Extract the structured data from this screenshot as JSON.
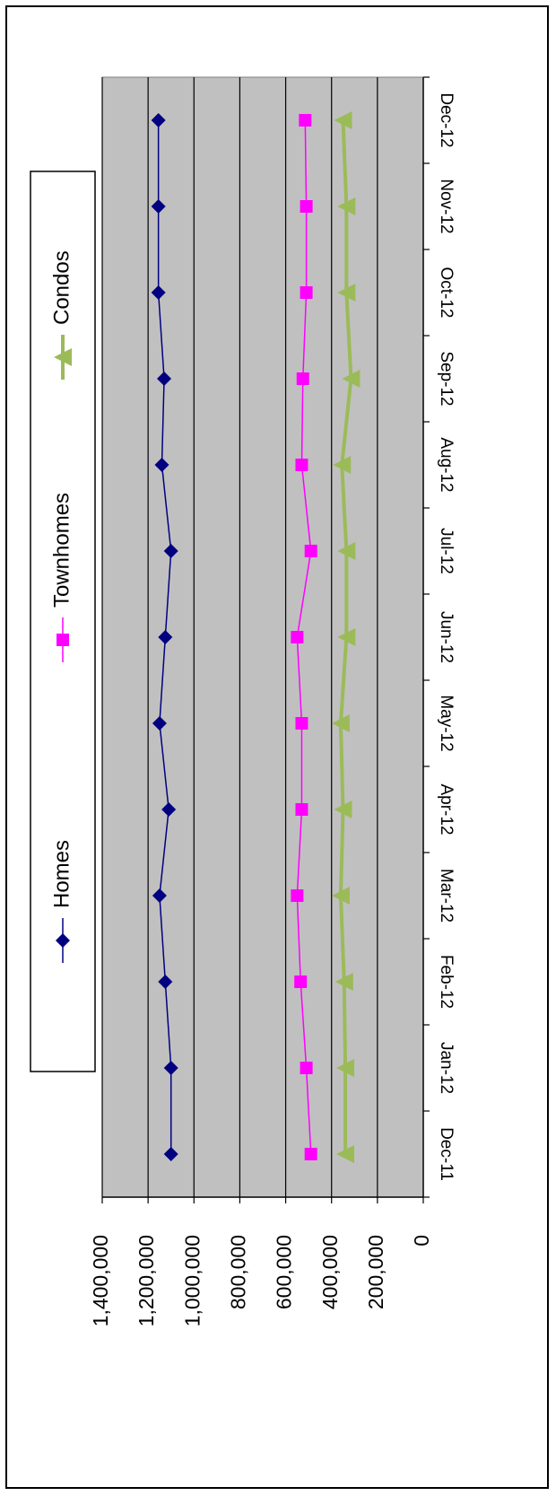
{
  "chart_data": {
    "type": "line",
    "orientation": "rotated-90-clockwise",
    "categories": [
      "Dec-11",
      "Jan-12",
      "Feb-12",
      "Mar-12",
      "Apr-12",
      "May-12",
      "Jun-12",
      "Jul-12",
      "Aug-12",
      "Sep-12",
      "Oct-12",
      "Nov-12",
      "Dec-12"
    ],
    "ylim": [
      0,
      1400000
    ],
    "yticks": [
      0,
      200000,
      400000,
      600000,
      800000,
      1000000,
      1200000,
      1400000
    ],
    "ytick_labels": [
      "0",
      "200,000",
      "400,000",
      "600,000",
      "800,000",
      "1,000,000",
      "1,200,000",
      "1,400,000"
    ],
    "grid": true,
    "plot_background": "#c0c0c0",
    "legend_position": "top",
    "series": [
      {
        "name": "Homes",
        "color": "#000080",
        "marker": "diamond",
        "values": [
          1100000,
          1100000,
          1125000,
          1150000,
          1110000,
          1150000,
          1125000,
          1100000,
          1140000,
          1130000,
          1155000,
          1155000,
          1155000
        ]
      },
      {
        "name": "Townhomes",
        "color": "#ff00ff",
        "marker": "square",
        "values": [
          490000,
          510000,
          535000,
          550000,
          530000,
          530000,
          550000,
          490000,
          530000,
          525000,
          510000,
          510000,
          515000
        ]
      },
      {
        "name": "Condos",
        "color": "#9bbb59",
        "marker": "triangle",
        "values": [
          340000,
          340000,
          345000,
          360000,
          350000,
          360000,
          335000,
          335000,
          355000,
          315000,
          335000,
          335000,
          350000
        ]
      }
    ]
  }
}
